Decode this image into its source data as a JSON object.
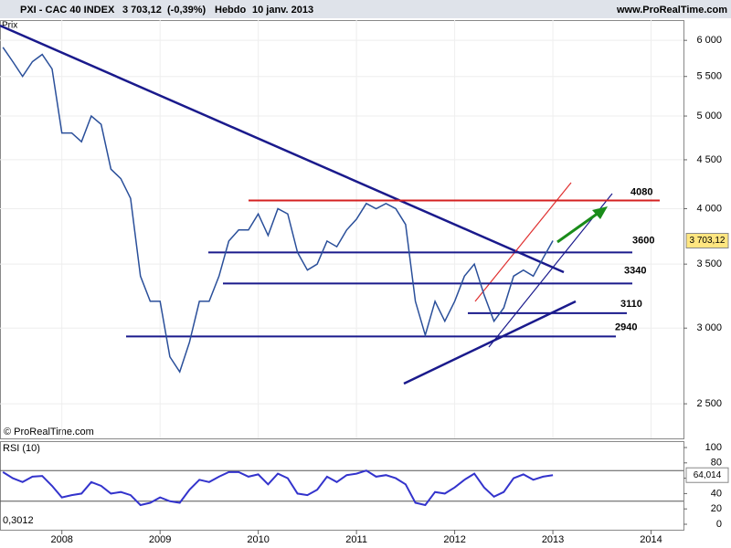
{
  "chart_data": [
    {
      "type": "line",
      "title": "PXI - CAC 40 INDEX",
      "last": {
        "value": 3703.12,
        "label": "3 703,12"
      },
      "change": "(-0,39%)",
      "period": "Hebdo",
      "date": "10 janv. 2013",
      "source": "www.ProRealTime.com",
      "copyright": "© ProRealTime.com",
      "y_label": "Prix",
      "log_scale": true,
      "x": [
        2007.4,
        2007.5,
        2007.6,
        2007.7,
        2007.8,
        2007.9,
        2008.0,
        2008.1,
        2008.2,
        2008.3,
        2008.4,
        2008.5,
        2008.6,
        2008.7,
        2008.8,
        2008.9,
        2009.0,
        2009.1,
        2009.2,
        2009.3,
        2009.4,
        2009.5,
        2009.6,
        2009.7,
        2009.8,
        2009.9,
        2010.0,
        2010.1,
        2010.2,
        2010.3,
        2010.4,
        2010.5,
        2010.6,
        2010.7,
        2010.8,
        2010.9,
        2011.0,
        2011.1,
        2011.2,
        2011.3,
        2011.4,
        2011.5,
        2011.6,
        2011.7,
        2011.8,
        2011.9,
        2012.0,
        2012.1,
        2012.2,
        2012.3,
        2012.4,
        2012.5,
        2012.6,
        2012.7,
        2012.8,
        2012.9,
        2013.0
      ],
      "series": [
        {
          "name": "CAC 40",
          "color": "#2a4f9a",
          "values": [
            5900,
            5700,
            5500,
            5700,
            5800,
            5600,
            4800,
            4800,
            4700,
            5000,
            4900,
            4400,
            4300,
            4100,
            3400,
            3200,
            3200,
            2800,
            2700,
            2900,
            3200,
            3200,
            3400,
            3700,
            3800,
            3800,
            3950,
            3750,
            4000,
            3950,
            3600,
            3450,
            3500,
            3700,
            3650,
            3800,
            3900,
            4050,
            4000,
            4050,
            4000,
            3850,
            3200,
            2950,
            3200,
            3050,
            3200,
            3400,
            3500,
            3250,
            3050,
            3150,
            3400,
            3450,
            3400,
            3550,
            3703.12
          ]
        }
      ],
      "levels": [
        {
          "value": 4080,
          "color": "#d42020"
        },
        {
          "value": 3600,
          "color": "#1a1a8c"
        },
        {
          "value": 3340,
          "color": "#1a1a8c"
        },
        {
          "value": 3110,
          "color": "#1a1a8c"
        },
        {
          "value": 2940,
          "color": "#1a1a8c"
        }
      ],
      "xlim": [
        2007.37,
        2014.33
      ],
      "xticks": [
        2008,
        2009,
        2010,
        2011,
        2012,
        2013,
        2014
      ],
      "ylim": [
        2300,
        6300
      ],
      "yticks": [
        {
          "value": 2500,
          "label": "2 500"
        },
        {
          "value": 3000,
          "label": "3 000"
        },
        {
          "value": 3500,
          "label": "3 500"
        },
        {
          "value": 4000,
          "label": "4 000"
        },
        {
          "value": 4500,
          "label": "4 500"
        },
        {
          "value": 5000,
          "label": "5 000"
        },
        {
          "value": 5500,
          "label": "5 500"
        },
        {
          "value": 6000,
          "label": "6 000"
        }
      ],
      "grid": true
    },
    {
      "type": "line",
      "title": "RSI (10)",
      "last": {
        "value": 64.014,
        "label": "64,014"
      },
      "note": "0,3012",
      "x": [
        2007.4,
        2007.5,
        2007.6,
        2007.7,
        2007.8,
        2007.9,
        2008.0,
        2008.1,
        2008.2,
        2008.3,
        2008.4,
        2008.5,
        2008.6,
        2008.7,
        2008.8,
        2008.9,
        2009.0,
        2009.1,
        2009.2,
        2009.3,
        2009.4,
        2009.5,
        2009.6,
        2009.7,
        2009.8,
        2009.9,
        2010.0,
        2010.1,
        2010.2,
        2010.3,
        2010.4,
        2010.5,
        2010.6,
        2010.7,
        2010.8,
        2010.9,
        2011.0,
        2011.1,
        2011.2,
        2011.3,
        2011.4,
        2011.5,
        2011.6,
        2011.7,
        2011.8,
        2011.9,
        2012.0,
        2012.1,
        2012.2,
        2012.3,
        2012.4,
        2012.5,
        2012.6,
        2012.7,
        2012.8,
        2012.9,
        2013.0
      ],
      "series": [
        {
          "name": "RSI",
          "color": "#3333cc",
          "values": [
            68,
            60,
            55,
            62,
            63,
            50,
            35,
            38,
            40,
            55,
            50,
            40,
            42,
            38,
            25,
            28,
            35,
            30,
            28,
            45,
            58,
            55,
            62,
            68,
            68,
            62,
            65,
            52,
            66,
            60,
            40,
            38,
            45,
            62,
            55,
            64,
            66,
            70,
            62,
            64,
            60,
            52,
            28,
            25,
            42,
            40,
            48,
            58,
            66,
            48,
            36,
            42,
            60,
            65,
            58,
            62,
            64.014
          ]
        }
      ],
      "bands": [
        30,
        70
      ],
      "xlim": [
        2007.37,
        2014.33
      ],
      "ylim": [
        0,
        100
      ],
      "yticks": [
        0,
        20,
        40,
        60,
        80,
        100
      ]
    }
  ]
}
